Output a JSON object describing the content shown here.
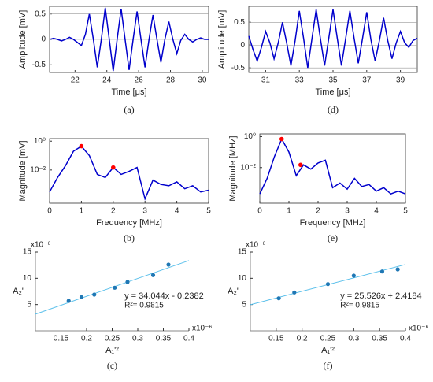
{
  "chart_data": [
    {
      "type": "line",
      "caption": "(a)",
      "xlabel": "Time [μs]",
      "ylabel": "Amplitude [mV]",
      "color": "#0000cc",
      "x": [
        20.4,
        20.65,
        20.9,
        21.15,
        21.4,
        21.65,
        21.9,
        22.15,
        22.4,
        22.65,
        22.9,
        23.15,
        23.4,
        23.65,
        23.9,
        24.15,
        24.4,
        24.65,
        24.9,
        25.15,
        25.4,
        25.65,
        25.9,
        26.15,
        26.4,
        26.65,
        26.9,
        27.15,
        27.4,
        27.65,
        27.9,
        28.15,
        28.4,
        28.65,
        28.9,
        29.15,
        29.4,
        29.65,
        29.9,
        30.15,
        30.4
      ],
      "values": [
        0,
        0.02,
        0,
        -0.03,
        0,
        0.04,
        0,
        -0.06,
        -0.12,
        0.1,
        0.5,
        0,
        -0.55,
        0,
        0.62,
        0,
        -0.62,
        0,
        0.6,
        0,
        -0.6,
        0,
        0.55,
        0,
        -0.55,
        0,
        0.48,
        0,
        -0.45,
        0,
        0.35,
        0,
        -0.28,
        -0.02,
        0.1,
        0,
        -0.05,
        0,
        0.03,
        0,
        0
      ],
      "xlim": [
        20.4,
        30.4
      ],
      "xticks": [
        22,
        24,
        26,
        28,
        30
      ],
      "ylim": [
        -0.65,
        0.65
      ],
      "yticks": [
        -0.5,
        0,
        0.5
      ]
    },
    {
      "type": "line",
      "caption": "(d)",
      "xlabel": "Time [μs]",
      "ylabel": "Amplitude [mV]",
      "color": "#0000cc",
      "x": [
        30,
        30.25,
        30.5,
        30.75,
        31,
        31.25,
        31.5,
        31.75,
        32,
        32.25,
        32.5,
        32.75,
        33,
        33.25,
        33.5,
        33.75,
        34,
        34.25,
        34.5,
        34.75,
        35,
        35.25,
        35.5,
        35.75,
        36,
        36.25,
        36.5,
        36.75,
        37,
        37.25,
        37.5,
        37.75,
        38,
        38.25,
        38.5,
        38.75,
        39,
        39.25,
        39.5,
        39.75,
        40
      ],
      "values": [
        0.2,
        -0.1,
        -0.35,
        -0.05,
        0.3,
        0.05,
        -0.3,
        0.05,
        0.5,
        0.05,
        -0.45,
        0.1,
        0.75,
        0.15,
        -0.5,
        0.15,
        0.78,
        0.15,
        -0.45,
        0.15,
        0.78,
        0.15,
        -0.45,
        0.15,
        0.75,
        0.15,
        -0.4,
        0.15,
        0.72,
        0.12,
        -0.35,
        0.1,
        0.6,
        0.1,
        -0.3,
        0.05,
        0.3,
        0.05,
        -0.05,
        0.1,
        0.15
      ],
      "xlim": [
        30,
        40
      ],
      "xticks": [
        31,
        33,
        35,
        37,
        39
      ],
      "ylim": [
        -0.6,
        0.85
      ],
      "yticks": [
        -0.5,
        0,
        0.5
      ]
    },
    {
      "type": "line",
      "log_y": true,
      "caption": "(b)",
      "xlabel": "Frequency [MHz]",
      "ylabel": "Magnitude [mV]",
      "color": "#0000cc",
      "x": [
        0,
        0.25,
        0.5,
        0.75,
        1,
        1.25,
        1.5,
        1.75,
        2,
        2.25,
        2.5,
        2.75,
        3,
        3.25,
        3.5,
        3.75,
        4,
        4.25,
        4.5,
        4.75,
        5
      ],
      "values": [
        0.0003,
        0.003,
        0.02,
        0.2,
        0.45,
        0.1,
        0.005,
        0.003,
        0.015,
        0.005,
        0.008,
        0.015,
        0.0001,
        0.002,
        0.001,
        0.0008,
        0.0015,
        0.0005,
        0.0008,
        0.0003,
        0.0004
      ],
      "markers": {
        "x": [
          1,
          2
        ],
        "values": [
          0.45,
          0.015
        ],
        "color": "#ff0000"
      },
      "xlim": [
        0,
        5
      ],
      "xticks": [
        0,
        1,
        2,
        3,
        4,
        5
      ],
      "ylim": [
        5e-05,
        1.5
      ],
      "yticks": [
        {
          "value": 1,
          "label": "10⁰"
        },
        {
          "value": 0.01,
          "label": "10⁻²"
        }
      ]
    },
    {
      "type": "line",
      "log_y": true,
      "caption": "(e)",
      "xlabel": "Frequency [MHz]",
      "ylabel": "Magnitude [MHz]",
      "color": "#0000cc",
      "x": [
        0,
        0.25,
        0.5,
        0.75,
        1,
        1.25,
        1.5,
        1.75,
        2,
        2.25,
        2.5,
        2.75,
        3,
        3.25,
        3.5,
        3.75,
        4,
        4.25,
        4.5,
        4.75,
        5
      ],
      "values": [
        0.0002,
        0.002,
        0.05,
        0.7,
        0.1,
        0.003,
        0.015,
        0.008,
        0.02,
        0.03,
        0.0005,
        0.001,
        0.0004,
        0.002,
        0.0006,
        0.0008,
        0.0003,
        0.0005,
        0.0002,
        0.0003,
        0.0002
      ],
      "markers": {
        "x": [
          0.75,
          1.4
        ],
        "values": [
          0.7,
          0.015
        ],
        "color": "#ff0000"
      },
      "xlim": [
        0,
        5
      ],
      "xticks": [
        0,
        1,
        2,
        3,
        4,
        5
      ],
      "ylim": [
        5e-05,
        1.5
      ],
      "yticks": [
        {
          "value": 1,
          "label": "10⁰"
        },
        {
          "value": 0.01,
          "label": "10⁻²"
        }
      ]
    },
    {
      "type": "scatter",
      "caption": "(c)",
      "xlabel": "A₁'²",
      "ylabel": "A₂'",
      "x_multiplier": "x10⁻⁶",
      "y_multiplier": "x10⁻⁶",
      "equation": "y = 34.044x - 0.2382",
      "r2": "R²= 0.9815",
      "color": "#1f77b4",
      "x": [
        0.165,
        0.19,
        0.215,
        0.255,
        0.28,
        0.33,
        0.36
      ],
      "values": [
        5.7,
        6.4,
        6.9,
        8.2,
        9.3,
        10.6,
        12.6
      ],
      "fit": {
        "x": [
          0.1,
          0.4
        ],
        "values": [
          3.17,
          13.38
        ],
        "color": "#5bc0eb"
      },
      "xlim": [
        0.1,
        0.4
      ],
      "xticks": [
        0.15,
        0.2,
        0.25,
        0.3,
        0.35,
        0.4
      ],
      "ylim": [
        0,
        15
      ],
      "yticks": [
        5,
        10,
        15
      ]
    },
    {
      "type": "scatter",
      "caption": "(f)",
      "xlabel": "A₁'²",
      "ylabel": "A₂'",
      "x_multiplier": "x10⁻⁶",
      "y_multiplier": "x10⁻⁶",
      "equation": "y = 25.526x + 2.4184",
      "r2": "R²= 0.9815",
      "color": "#1f77b4",
      "x": [
        0.155,
        0.185,
        0.25,
        0.3,
        0.355,
        0.385
      ],
      "values": [
        6.2,
        7.3,
        8.9,
        10.5,
        11.3,
        11.7
      ],
      "fit": {
        "x": [
          0.1,
          0.4
        ],
        "values": [
          4.97,
          12.63
        ],
        "color": "#5bc0eb"
      },
      "xlim": [
        0.1,
        0.4
      ],
      "xticks": [
        0.15,
        0.2,
        0.25,
        0.3,
        0.35,
        0.4
      ],
      "ylim": [
        0,
        15
      ],
      "yticks": [
        5,
        10,
        15
      ]
    }
  ]
}
